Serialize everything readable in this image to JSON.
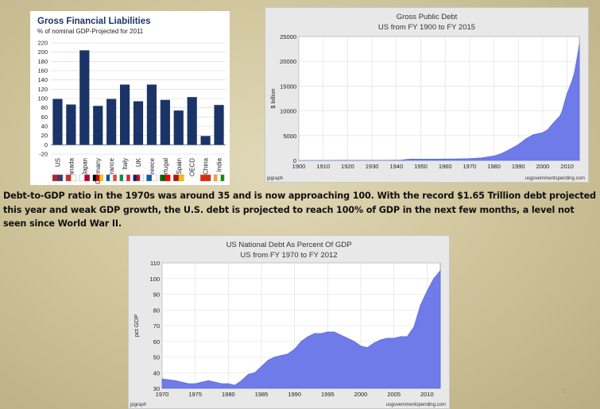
{
  "chart_data": [
    {
      "type": "bar",
      "title": "Gross Financial Liabilities",
      "subtitle": "% of nominal GDP-Projected for 2011",
      "categories": [
        "US",
        "Canada",
        "Japan",
        "Germany",
        "France",
        "Italy",
        "UK",
        "Greece",
        "Portugal",
        "Spain",
        "OECD",
        "China",
        "India"
      ],
      "values": [
        99,
        87,
        204,
        84,
        99,
        130,
        94,
        130,
        97,
        74,
        103,
        19,
        86
      ],
      "ylim": [
        -20,
        220
      ],
      "yticks": [
        "220",
        "200",
        "180",
        "160",
        "140",
        "120",
        "100",
        "80",
        "60",
        "40",
        "20",
        "0",
        "-20"
      ],
      "bar_color": "#1b3467",
      "flag_colors": [
        [
          "#b22234",
          "#3c3b6e"
        ],
        [
          "#d52b1e",
          "#ffffff"
        ],
        [
          "#ffffff",
          "#bc002d"
        ],
        [
          "#000000",
          "#dd0000",
          "#ffce00"
        ],
        [
          "#0055a4",
          "#ffffff",
          "#ef4135"
        ],
        [
          "#009246",
          "#ffffff",
          "#ce2b37"
        ],
        [
          "#012169",
          "#c8102e",
          "#ffffff"
        ],
        [
          "#0d5eaf",
          "#ffffff"
        ],
        [
          "#006600",
          "#ff0000"
        ],
        [
          "#aa151b",
          "#f1bf00"
        ],
        [
          "#ffffff",
          "#ffffff"
        ],
        [
          "#de2910",
          "#de2910"
        ],
        [
          "#ff9933",
          "#ffffff",
          "#138808"
        ]
      ]
    },
    {
      "type": "area",
      "title": "Gross Public Debt",
      "subtitle": "US from FY 1900 to FY 2015",
      "ylabel": "$ billion",
      "xlim": [
        1900,
        2015
      ],
      "ylim": [
        0,
        25000
      ],
      "xticks": [
        1900,
        1910,
        1920,
        1930,
        1940,
        1950,
        1960,
        1970,
        1980,
        1990,
        2000,
        2010
      ],
      "yticks": [
        0,
        5000,
        10000,
        15000,
        20000,
        25000
      ],
      "x": [
        1900,
        1915,
        1917,
        1919,
        1925,
        1930,
        1935,
        1940,
        1942,
        1944,
        1946,
        1950,
        1955,
        1960,
        1965,
        1970,
        1975,
        1980,
        1983,
        1986,
        1990,
        1993,
        1996,
        2000,
        2002,
        2004,
        2006,
        2007,
        2008,
        2009,
        2010,
        2011,
        2012,
        2013,
        2014,
        2015
      ],
      "y": [
        2,
        3,
        15,
        27,
        21,
        16,
        34,
        51,
        79,
        204,
        271,
        257,
        274,
        291,
        322,
        381,
        542,
        909,
        1372,
        2121,
        3206,
        4351,
        5181,
        5628,
        6198,
        7379,
        8451,
        8951,
        10025,
        11910,
        13562,
        14790,
        16066,
        17800,
        20500,
        23500
      ],
      "fill_color": "#6f7be9",
      "source_left": "jpgraph",
      "source_right": "usgovernmentspending.com"
    },
    {
      "type": "area",
      "title": "US National Debt As Percent Of GDP",
      "subtitle": "US from FY 1970 to FY 2012",
      "ylabel": "pct GDP",
      "xlim": [
        1970,
        2012
      ],
      "ylim": [
        30,
        110
      ],
      "xticks": [
        1970,
        1975,
        1980,
        1985,
        1990,
        1995,
        2000,
        2005,
        2010
      ],
      "yticks": [
        30,
        40,
        50,
        60,
        70,
        80,
        90,
        100,
        110
      ],
      "x": [
        1970,
        1972,
        1974,
        1975,
        1977,
        1979,
        1980,
        1981,
        1982,
        1983,
        1984,
        1985,
        1986,
        1987,
        1988,
        1989,
        1990,
        1991,
        1992,
        1993,
        1994,
        1995,
        1996,
        1997,
        1998,
        1999,
        2000,
        2001,
        2002,
        2003,
        2004,
        2005,
        2006,
        2007,
        2008,
        2009,
        2010,
        2011,
        2012
      ],
      "y": [
        36,
        35,
        33,
        33,
        35,
        33,
        33,
        32,
        35,
        39,
        40,
        44,
        48,
        50,
        51,
        52,
        55,
        60,
        63,
        65,
        65,
        66,
        66,
        64,
        62,
        60,
        57,
        56,
        59,
        61,
        62,
        62,
        63,
        63,
        69,
        83,
        92,
        100,
        105
      ],
      "fill_color": "#6f7be9",
      "source_left": "jpgraph",
      "source_right": "usgovernmentspending.com"
    }
  ],
  "caption": "Debt-to-GDP ratio in the 1970s  was around 35 and is now approaching 100.  With the record $1.65  Trillion debt projected this year and weak GDP growth, the U.S. debt is projected to reach 100% of GDP in the next few months, a level not seen since World War II.",
  "slide_number": "9"
}
